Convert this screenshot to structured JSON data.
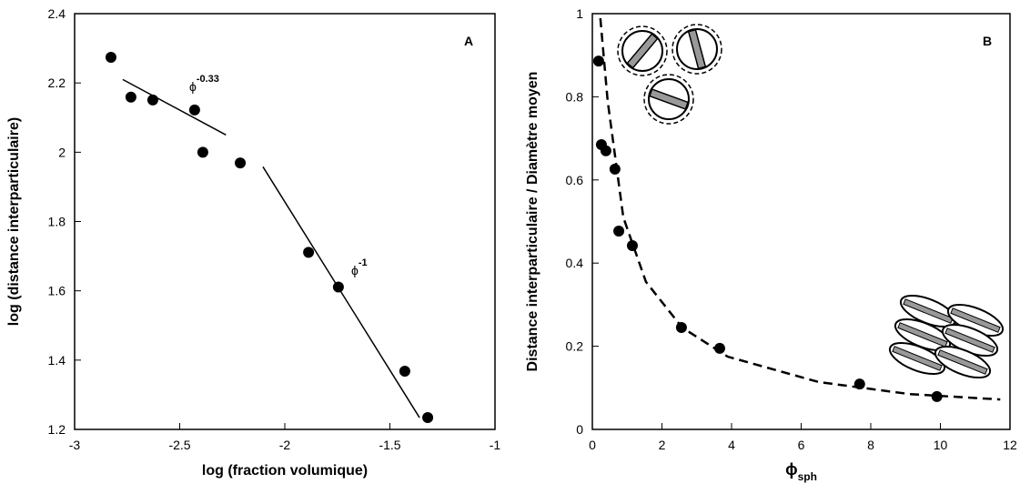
{
  "chart_data": [
    {
      "type": "scatter",
      "panel_label": "A",
      "xlabel": "log (fraction volumique)",
      "ylabel": "log (distance interparticulaire)",
      "xlim": [
        -3,
        -1
      ],
      "xticks": [
        -3,
        -2.5,
        -2,
        -1.5,
        -1
      ],
      "ylim": [
        1.2,
        2.4
      ],
      "yticks": [
        1.2,
        1.4,
        1.6,
        1.8,
        2,
        2.2,
        2.4
      ],
      "series": [
        {
          "color": "#000000",
          "x": [
            -2.827,
            -2.732,
            -2.628,
            -2.429,
            -2.39,
            -2.212,
            -1.887,
            -1.745,
            -1.429,
            -1.32
          ],
          "values": [
            2.274,
            2.159,
            2.151,
            2.122,
            2.0,
            1.969,
            1.711,
            1.611,
            1.368,
            1.234
          ]
        }
      ],
      "lines": [
        {
          "style": "solid",
          "x": [
            -2.771,
            -2.28
          ],
          "y": [
            2.21,
            2.05
          ]
        },
        {
          "style": "solid",
          "x": [
            -2.104,
            -1.359
          ],
          "y": [
            1.958,
            1.234
          ]
        }
      ],
      "annotations": [
        {
          "text": "ϕ",
          "superscript": "-0.33"
        },
        {
          "text": "ϕ",
          "superscript": "-1"
        }
      ]
    },
    {
      "type": "scatter",
      "panel_label": "B",
      "xlabel": "ϕ",
      "xlabel_sub": "sph",
      "ylabel": "Distance interparticulaire / Diamètre moyen",
      "xlim": [
        0,
        12
      ],
      "xticks": [
        0,
        2,
        4,
        6,
        8,
        10,
        12
      ],
      "ylim": [
        0,
        1
      ],
      "yticks": [
        0,
        0.2,
        0.4,
        0.6,
        0.8,
        1
      ],
      "series": [
        {
          "color": "#000000",
          "x": [
            0.18,
            0.26,
            0.39,
            0.65,
            0.76,
            1.15,
            2.56,
            3.66,
            7.68,
            9.9
          ],
          "values": [
            0.886,
            0.685,
            0.67,
            0.626,
            0.477,
            0.442,
            0.245,
            0.195,
            0.109,
            0.079
          ]
        }
      ],
      "lines": [
        {
          "style": "dashed",
          "x": [
            0.23,
            0.44,
            0.89,
            1.54,
            2.58,
            3.89,
            6.5,
            9.11,
            11.72
          ],
          "y": [
            0.989,
            0.79,
            0.51,
            0.355,
            0.245,
            0.175,
            0.114,
            0.085,
            0.072
          ]
        }
      ],
      "annotations": []
    }
  ]
}
